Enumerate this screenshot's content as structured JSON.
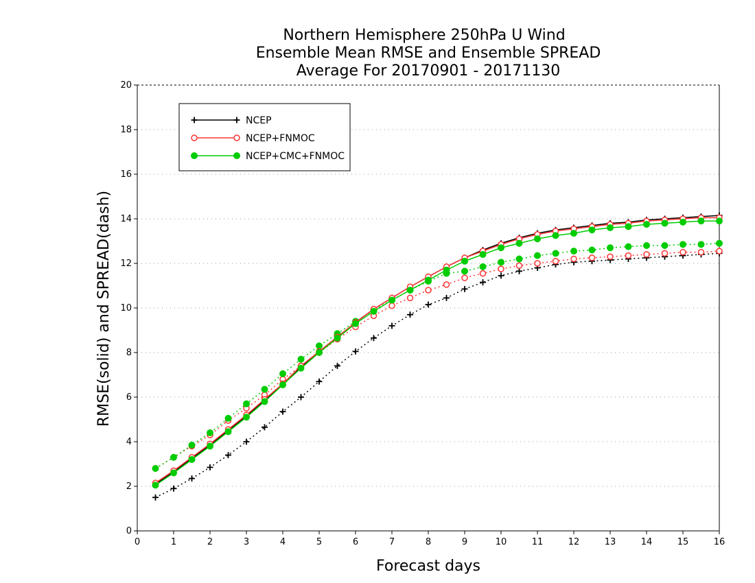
{
  "chart_data": {
    "type": "line",
    "title": [
      "Northern Hemisphere 250hPa U Wind",
      "Ensemble Mean RMSE and Ensemble SPREAD",
      "Average For 20170901 - 20171130"
    ],
    "xlabel": "Forecast days",
    "ylabel": "RMSE(solid) and SPREAD(dash)",
    "xlim": [
      0,
      16
    ],
    "ylim": [
      0,
      20
    ],
    "xticks": [
      0,
      1,
      2,
      3,
      4,
      5,
      6,
      7,
      8,
      9,
      10,
      11,
      12,
      13,
      14,
      15,
      16
    ],
    "yticks": [
      0,
      2,
      4,
      6,
      8,
      10,
      12,
      14,
      16,
      18,
      20
    ],
    "grid": "horizontal-dotted",
    "legend_position": "top-left",
    "x": [
      0.5,
      1,
      1.5,
      2,
      2.5,
      3,
      3.5,
      4,
      4.5,
      5,
      5.5,
      6,
      6.5,
      7,
      7.5,
      8,
      8.5,
      9,
      9.5,
      10,
      10.5,
      11,
      11.5,
      12,
      12.5,
      13,
      13.5,
      14,
      14.5,
      15,
      15.5,
      16
    ],
    "series": [
      {
        "name": "NCEP",
        "color": "#000000",
        "marker": "plus",
        "rmse": [
          2.1,
          2.65,
          3.25,
          3.85,
          4.5,
          5.15,
          5.85,
          6.6,
          7.35,
          8.05,
          8.7,
          9.35,
          9.95,
          10.45,
          10.95,
          11.4,
          11.85,
          12.25,
          12.6,
          12.9,
          13.15,
          13.35,
          13.5,
          13.6,
          13.7,
          13.8,
          13.85,
          13.95,
          14.0,
          14.05,
          14.1,
          14.15
        ],
        "spread": [
          1.5,
          1.9,
          2.35,
          2.85,
          3.4,
          4.0,
          4.65,
          5.35,
          6.0,
          6.7,
          7.4,
          8.05,
          8.65,
          9.2,
          9.7,
          10.15,
          10.45,
          10.85,
          11.15,
          11.45,
          11.65,
          11.8,
          11.95,
          12.05,
          12.1,
          12.15,
          12.2,
          12.25,
          12.3,
          12.35,
          12.4,
          12.45
        ]
      },
      {
        "name": "NCEP+FNMOC",
        "color": "#ff3333",
        "marker": "circle-open",
        "rmse": [
          2.15,
          2.7,
          3.3,
          3.9,
          4.55,
          5.2,
          5.9,
          6.6,
          7.4,
          8.05,
          8.7,
          9.35,
          9.95,
          10.45,
          10.95,
          11.4,
          11.85,
          12.25,
          12.55,
          12.85,
          13.1,
          13.3,
          13.45,
          13.55,
          13.65,
          13.75,
          13.8,
          13.9,
          13.95,
          14.0,
          14.05,
          14.05
        ],
        "spread": [
          2.8,
          3.3,
          3.8,
          4.3,
          4.95,
          5.5,
          6.1,
          6.8,
          7.4,
          8.0,
          8.6,
          9.15,
          9.65,
          10.1,
          10.45,
          10.8,
          11.05,
          11.35,
          11.55,
          11.75,
          11.9,
          12.0,
          12.1,
          12.2,
          12.25,
          12.3,
          12.35,
          12.4,
          12.45,
          12.5,
          12.5,
          12.55
        ]
      },
      {
        "name": "NCEP+CMC+FNMOC",
        "color": "#00cc00",
        "marker": "circle-filled",
        "rmse": [
          2.05,
          2.6,
          3.2,
          3.8,
          4.45,
          5.1,
          5.8,
          6.55,
          7.3,
          8.0,
          8.65,
          9.3,
          9.85,
          10.35,
          10.8,
          11.25,
          11.7,
          12.1,
          12.4,
          12.7,
          12.9,
          13.1,
          13.25,
          13.35,
          13.5,
          13.6,
          13.65,
          13.75,
          13.8,
          13.85,
          13.9,
          13.9
        ],
        "spread": [
          2.8,
          3.3,
          3.85,
          4.4,
          5.05,
          5.7,
          6.35,
          7.05,
          7.7,
          8.3,
          8.85,
          9.4,
          9.9,
          10.35,
          10.8,
          11.2,
          11.55,
          11.65,
          11.85,
          12.05,
          12.2,
          12.35,
          12.45,
          12.55,
          12.6,
          12.7,
          12.75,
          12.8,
          12.8,
          12.85,
          12.85,
          12.9
        ]
      }
    ]
  }
}
